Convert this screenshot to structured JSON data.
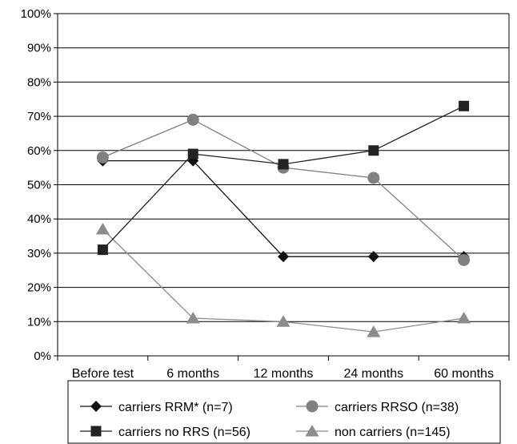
{
  "chart_data": {
    "type": "line",
    "title": "",
    "xlabel": "",
    "ylabel": "",
    "categories": [
      "Before test",
      "6 months",
      "12 months",
      "24 months",
      "60 months"
    ],
    "y_ticks": [
      "0%",
      "10%",
      "20%",
      "30%",
      "40%",
      "50%",
      "60%",
      "70%",
      "80%",
      "90%",
      "100%"
    ],
    "ylim": [
      0,
      100
    ],
    "y_unit": "%",
    "grid": "horizontal",
    "legend_position": "bottom",
    "series": [
      {
        "name": "carriers RRM* (n=7)",
        "marker": "diamond",
        "color": "#111111",
        "values": [
          57,
          57,
          29,
          29,
          29
        ]
      },
      {
        "name": "carriers RRSO (n=38)",
        "marker": "circle",
        "color": "#808080",
        "values": [
          58,
          69,
          55,
          52,
          28
        ]
      },
      {
        "name": "carriers no RRS (n=56)",
        "marker": "square",
        "color": "#222222",
        "values": [
          31,
          59,
          56,
          60,
          73
        ]
      },
      {
        "name": "non carriers (n=145)",
        "marker": "triangle",
        "color": "#8c8c8c",
        "values": [
          37,
          11,
          10,
          7,
          11
        ]
      }
    ]
  }
}
